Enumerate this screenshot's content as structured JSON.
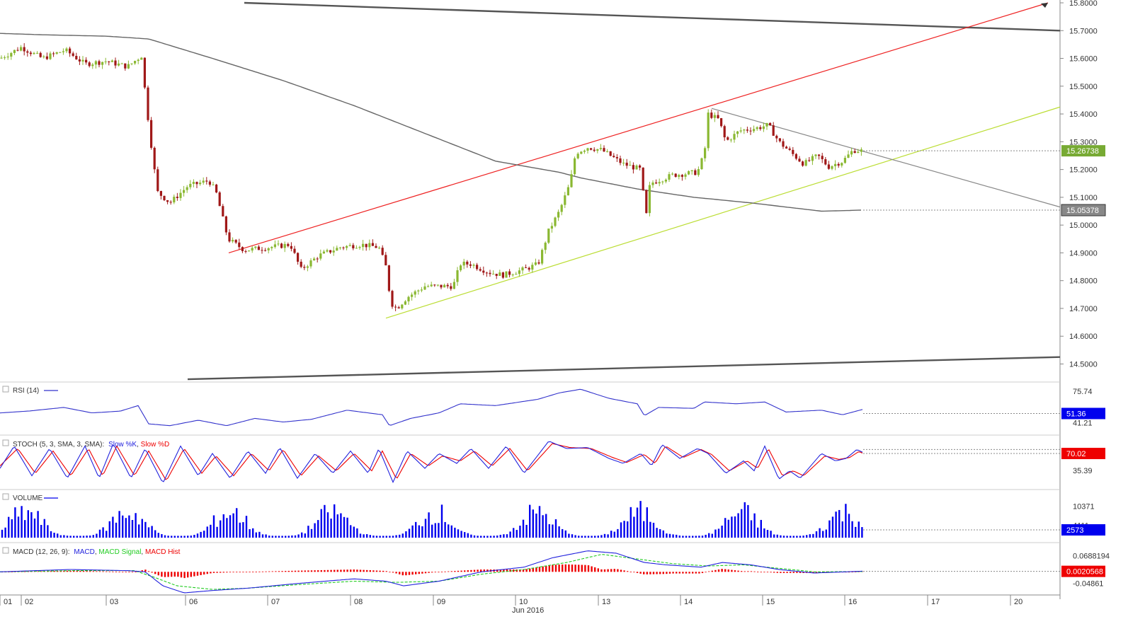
{
  "chart_data": {
    "type": "candlestick",
    "instrument_last_price": "15.26738",
    "price_axis": {
      "min": 14.45,
      "max": 15.8,
      "ticks": [
        "15.8000",
        "15.7000",
        "15.6000",
        "15.5000",
        "15.4000",
        "15.3000",
        "15.2000",
        "15.1000",
        "15.0000",
        "14.9000",
        "14.8000",
        "14.7000",
        "14.6000",
        "14.5000"
      ]
    },
    "x_axis": {
      "ticks": [
        "01",
        "02",
        "03",
        "06",
        "07",
        "08",
        "09",
        "10",
        "13",
        "14",
        "15",
        "16",
        "17",
        "20"
      ],
      "month_label": "Jun 2016"
    },
    "moving_average_value": "15.05378",
    "trend_lines": [
      {
        "name": "channel-top",
        "color": "#555555",
        "points": [
          [
            345,
            15.8
          ],
          [
            1497,
            15.7
          ]
        ]
      },
      {
        "name": "channel-bottom",
        "color": "#555555",
        "points": [
          [
            265,
            14.445
          ],
          [
            1497,
            14.525
          ]
        ]
      },
      {
        "name": "rising-resistance",
        "color": "#ee2222",
        "points": [
          [
            323,
            14.9
          ],
          [
            1480,
            15.8
          ]
        ]
      },
      {
        "name": "rising-support",
        "color": "#bbdd33",
        "points": [
          [
            545,
            14.665
          ],
          [
            1497,
            15.425
          ]
        ]
      },
      {
        "name": "falling-resistance",
        "color": "#888888",
        "points": [
          [
            1005,
            15.42
          ],
          [
            1497,
            15.065
          ]
        ]
      }
    ],
    "price_path_keypoints": [
      [
        0,
        15.6
      ],
      [
        30,
        15.64
      ],
      [
        60,
        15.6
      ],
      [
        92,
        15.63
      ],
      [
        120,
        15.58
      ],
      [
        150,
        15.59
      ],
      [
        180,
        15.57
      ],
      [
        200,
        15.61
      ],
      [
        206,
        15.45
      ],
      [
        213,
        15.3
      ],
      [
        222,
        15.12
      ],
      [
        240,
        15.08
      ],
      [
        265,
        15.14
      ],
      [
        295,
        15.16
      ],
      [
        305,
        15.12
      ],
      [
        322,
        14.95
      ],
      [
        345,
        14.91
      ],
      [
        380,
        14.92
      ],
      [
        410,
        14.93
      ],
      [
        425,
        14.84
      ],
      [
        450,
        14.89
      ],
      [
        480,
        14.92
      ],
      [
        510,
        14.93
      ],
      [
        535,
        14.92
      ],
      [
        545,
        14.85
      ],
      [
        552,
        14.72
      ],
      [
        560,
        14.7
      ],
      [
        575,
        14.74
      ],
      [
        600,
        14.78
      ],
      [
        640,
        14.78
      ],
      [
        650,
        14.86
      ],
      [
        665,
        14.86
      ],
      [
        690,
        14.83
      ],
      [
        710,
        14.82
      ],
      [
        740,
        14.84
      ],
      [
        760,
        14.86
      ],
      [
        775,
        14.98
      ],
      [
        790,
        15.05
      ],
      [
        805,
        15.15
      ],
      [
        813,
        15.26
      ],
      [
        830,
        15.28
      ],
      [
        850,
        15.27
      ],
      [
        880,
        15.22
      ],
      [
        905,
        15.2
      ],
      [
        912,
        15.02
      ],
      [
        918,
        15.15
      ],
      [
        950,
        15.18
      ],
      [
        985,
        15.19
      ],
      [
        995,
        15.26
      ],
      [
        1000,
        15.4
      ],
      [
        1015,
        15.38
      ],
      [
        1025,
        15.3
      ],
      [
        1045,
        15.34
      ],
      [
        1070,
        15.35
      ],
      [
        1085,
        15.36
      ],
      [
        1100,
        15.3
      ],
      [
        1135,
        15.22
      ],
      [
        1155,
        15.25
      ],
      [
        1170,
        15.21
      ],
      [
        1190,
        15.23
      ],
      [
        1205,
        15.27
      ],
      [
        1219,
        15.267
      ]
    ],
    "moving_average_keypoints": [
      [
        0,
        15.69
      ],
      [
        60,
        15.685
      ],
      [
        150,
        15.68
      ],
      [
        210,
        15.67
      ],
      [
        300,
        15.6
      ],
      [
        400,
        15.52
      ],
      [
        500,
        15.43
      ],
      [
        600,
        15.33
      ],
      [
        700,
        15.23
      ],
      [
        790,
        15.19
      ],
      [
        820,
        15.17
      ],
      [
        900,
        15.13
      ],
      [
        980,
        15.1
      ],
      [
        1060,
        15.08
      ],
      [
        1160,
        15.05
      ],
      [
        1219,
        15.054
      ]
    ],
    "panels": [
      {
        "name": "rsi",
        "legend": "RSI (14)",
        "ticks": [
          "75.74",
          "41.21"
        ],
        "current_value": "51.36",
        "value_color": "#0000ee",
        "range": [
          30,
          82
        ],
        "series": [
          {
            "name": "RSI",
            "color": "#3333cc"
          }
        ],
        "keypoints": [
          [
            0,
            52
          ],
          [
            40,
            54
          ],
          [
            90,
            58
          ],
          [
            130,
            52
          ],
          [
            170,
            54
          ],
          [
            195,
            60
          ],
          [
            210,
            40
          ],
          [
            240,
            38
          ],
          [
            280,
            44
          ],
          [
            320,
            38
          ],
          [
            360,
            46
          ],
          [
            400,
            42
          ],
          [
            440,
            45
          ],
          [
            490,
            55
          ],
          [
            540,
            50
          ],
          [
            550,
            38
          ],
          [
            580,
            46
          ],
          [
            620,
            52
          ],
          [
            650,
            62
          ],
          [
            700,
            60
          ],
          [
            760,
            67
          ],
          [
            790,
            74
          ],
          [
            820,
            78
          ],
          [
            860,
            68
          ],
          [
            900,
            62
          ],
          [
            910,
            49
          ],
          [
            930,
            58
          ],
          [
            980,
            57
          ],
          [
            995,
            64
          ],
          [
            1040,
            62
          ],
          [
            1080,
            64
          ],
          [
            1110,
            53
          ],
          [
            1160,
            55
          ],
          [
            1190,
            50
          ],
          [
            1219,
            56
          ]
        ]
      },
      {
        "name": "stoch",
        "legend_prefix": "STOCH (5, 3, SMA, 3, SMA):",
        "legend_series": [
          "Slow %K",
          "Slow %D"
        ],
        "ticks": [
          "35.39"
        ],
        "current_value": "70.02",
        "value_color": "#ee0000",
        "range": [
          0,
          100
        ],
        "series": [
          {
            "name": "Slow %K",
            "color": "#2222dd"
          },
          {
            "name": "Slow %D",
            "color": "#ee0000"
          }
        ],
        "k_keypoints": [
          [
            0,
            40
          ],
          [
            20,
            85
          ],
          [
            45,
            25
          ],
          [
            70,
            80
          ],
          [
            95,
            20
          ],
          [
            120,
            85
          ],
          [
            140,
            20
          ],
          [
            160,
            90
          ],
          [
            185,
            20
          ],
          [
            205,
            80
          ],
          [
            230,
            10
          ],
          [
            255,
            85
          ],
          [
            280,
            25
          ],
          [
            300,
            70
          ],
          [
            325,
            20
          ],
          [
            350,
            75
          ],
          [
            375,
            30
          ],
          [
            395,
            82
          ],
          [
            420,
            20
          ],
          [
            445,
            70
          ],
          [
            470,
            30
          ],
          [
            495,
            75
          ],
          [
            520,
            30
          ],
          [
            535,
            80
          ],
          [
            555,
            12
          ],
          [
            575,
            75
          ],
          [
            600,
            40
          ],
          [
            620,
            70
          ],
          [
            645,
            50
          ],
          [
            665,
            80
          ],
          [
            690,
            40
          ],
          [
            715,
            85
          ],
          [
            740,
            30
          ],
          [
            775,
            95
          ],
          [
            800,
            80
          ],
          [
            830,
            82
          ],
          [
            860,
            60
          ],
          [
            880,
            50
          ],
          [
            905,
            70
          ],
          [
            920,
            45
          ],
          [
            935,
            88
          ],
          [
            960,
            60
          ],
          [
            985,
            80
          ],
          [
            1000,
            70
          ],
          [
            1025,
            30
          ],
          [
            1050,
            55
          ],
          [
            1065,
            35
          ],
          [
            1080,
            85
          ],
          [
            1100,
            18
          ],
          [
            1115,
            35
          ],
          [
            1130,
            20
          ],
          [
            1160,
            70
          ],
          [
            1180,
            55
          ],
          [
            1195,
            60
          ],
          [
            1210,
            78
          ],
          [
            1219,
            72
          ]
        ],
        "d_keypoints": [
          [
            0,
            45
          ],
          [
            25,
            80
          ],
          [
            50,
            30
          ],
          [
            75,
            75
          ],
          [
            100,
            25
          ],
          [
            125,
            80
          ],
          [
            145,
            25
          ],
          [
            165,
            85
          ],
          [
            190,
            25
          ],
          [
            210,
            75
          ],
          [
            235,
            15
          ],
          [
            260,
            80
          ],
          [
            285,
            30
          ],
          [
            305,
            65
          ],
          [
            330,
            25
          ],
          [
            355,
            70
          ],
          [
            380,
            35
          ],
          [
            400,
            78
          ],
          [
            425,
            25
          ],
          [
            450,
            65
          ],
          [
            475,
            35
          ],
          [
            500,
            70
          ],
          [
            525,
            35
          ],
          [
            540,
            75
          ],
          [
            560,
            18
          ],
          [
            580,
            70
          ],
          [
            605,
            45
          ],
          [
            625,
            65
          ],
          [
            650,
            55
          ],
          [
            670,
            75
          ],
          [
            695,
            45
          ],
          [
            720,
            80
          ],
          [
            745,
            35
          ],
          [
            780,
            90
          ],
          [
            805,
            82
          ],
          [
            835,
            80
          ],
          [
            865,
            62
          ],
          [
            885,
            52
          ],
          [
            910,
            68
          ],
          [
            925,
            50
          ],
          [
            940,
            85
          ],
          [
            965,
            62
          ],
          [
            990,
            78
          ],
          [
            1005,
            68
          ],
          [
            1030,
            35
          ],
          [
            1055,
            55
          ],
          [
            1070,
            40
          ],
          [
            1085,
            80
          ],
          [
            1105,
            25
          ],
          [
            1120,
            35
          ],
          [
            1135,
            25
          ],
          [
            1165,
            65
          ],
          [
            1185,
            58
          ],
          [
            1200,
            62
          ],
          [
            1213,
            74
          ],
          [
            1219,
            70
          ]
        ]
      },
      {
        "name": "volume",
        "legend": "VOLUME",
        "ticks": [
          "10371",
          "4111"
        ],
        "current_value": "2573",
        "value_color": "#0000ee",
        "series": [
          {
            "name": "Volume",
            "color": "#0000ee"
          }
        ]
      },
      {
        "name": "macd",
        "legend_prefix": "MACD (12, 26, 9):",
        "legend_series": [
          "MACD",
          "MACD Signal",
          "MACD Hist"
        ],
        "ticks": [
          "0.0688194",
          "-0.04861"
        ],
        "current_value": "0.0020568",
        "value_color": "#ee0000",
        "range": [
          -0.09,
          0.11
        ],
        "series": [
          {
            "name": "MACD",
            "color": "#2222dd"
          },
          {
            "name": "MACD Signal",
            "color": "#22cc22"
          },
          {
            "name": "MACD Hist",
            "color": "#ee0000"
          }
        ],
        "macd_keypoints": [
          [
            0,
            0.0
          ],
          [
            100,
            0.01
          ],
          [
            180,
            0.005
          ],
          [
            205,
            0.0
          ],
          [
            230,
            -0.06
          ],
          [
            260,
            -0.09
          ],
          [
            300,
            -0.08
          ],
          [
            350,
            -0.07
          ],
          [
            420,
            -0.05
          ],
          [
            500,
            -0.03
          ],
          [
            545,
            -0.04
          ],
          [
            570,
            -0.06
          ],
          [
            620,
            -0.04
          ],
          [
            680,
            0.0
          ],
          [
            740,
            0.02
          ],
          [
            780,
            0.06
          ],
          [
            830,
            0.09
          ],
          [
            870,
            0.08
          ],
          [
            910,
            0.04
          ],
          [
            940,
            0.03
          ],
          [
            990,
            0.02
          ],
          [
            1020,
            0.04
          ],
          [
            1060,
            0.03
          ],
          [
            1100,
            0.01
          ],
          [
            1150,
            -0.005
          ],
          [
            1219,
            0.003
          ]
        ],
        "signal_keypoints": [
          [
            0,
            0.0
          ],
          [
            100,
            0.005
          ],
          [
            190,
            0.005
          ],
          [
            215,
            -0.02
          ],
          [
            250,
            -0.06
          ],
          [
            300,
            -0.075
          ],
          [
            350,
            -0.07
          ],
          [
            420,
            -0.055
          ],
          [
            500,
            -0.04
          ],
          [
            560,
            -0.045
          ],
          [
            620,
            -0.04
          ],
          [
            680,
            -0.01
          ],
          [
            740,
            0.01
          ],
          [
            800,
            0.04
          ],
          [
            850,
            0.075
          ],
          [
            900,
            0.055
          ],
          [
            950,
            0.035
          ],
          [
            1000,
            0.025
          ],
          [
            1050,
            0.03
          ],
          [
            1100,
            0.015
          ],
          [
            1150,
            0.0
          ],
          [
            1219,
            0.001
          ]
        ]
      }
    ]
  }
}
